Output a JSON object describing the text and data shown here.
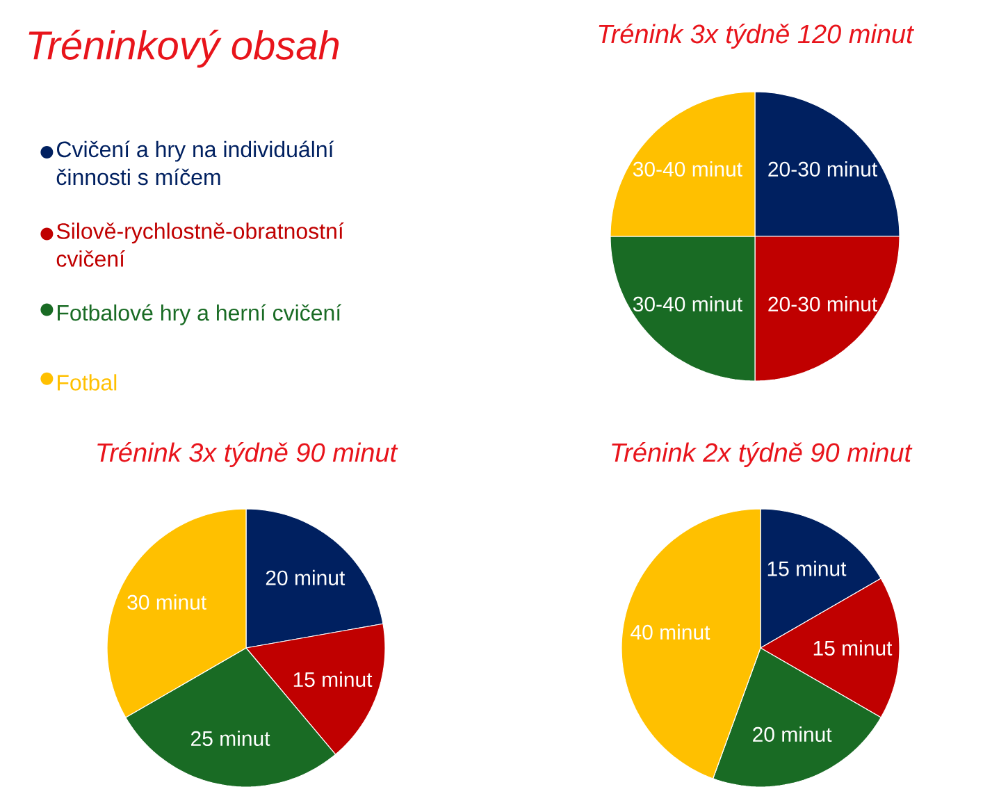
{
  "chart_data": [
    {
      "type": "pie",
      "title": "Trénink 3x týdně 120 minut",
      "legend_title": "Tréninkový obsah",
      "legend": "left",
      "categories": [
        "Cvičení a hry na individuální činnosti s míčem",
        "Silově-rychlostně-obratnostní cvičení",
        "Fotbalové hry a herní cvičení",
        "Fotbal"
      ],
      "values": [
        25,
        25,
        25,
        25
      ],
      "colors": [
        "#002060",
        "#c00000",
        "#196b24",
        "#ffc000"
      ],
      "value_labels": [
        "20-30 minut",
        "20-30 minut",
        "30-40 minut",
        "30-40 minut"
      ]
    },
    {
      "type": "pie",
      "title": "Trénink 3x týdně 90 minut",
      "categories": [
        null,
        null,
        null,
        null
      ],
      "values": [
        20,
        15,
        25,
        30
      ],
      "colors": [
        "#002060",
        "#c00000",
        "#196b24",
        "#ffc000"
      ],
      "value_labels": [
        "20 minut",
        "15 minut",
        "25 minut",
        "30 minut"
      ]
    },
    {
      "type": "pie",
      "title": "Trénink 2x týdně 90 minut",
      "categories": [
        null,
        null,
        null,
        null
      ],
      "values": [
        15,
        15,
        20,
        40
      ],
      "colors": [
        "#002060",
        "#c00000",
        "#196b24",
        "#ffc000"
      ],
      "value_labels": [
        "15 minut",
        "15 minut",
        "20 minut",
        "40 minut"
      ]
    }
  ]
}
